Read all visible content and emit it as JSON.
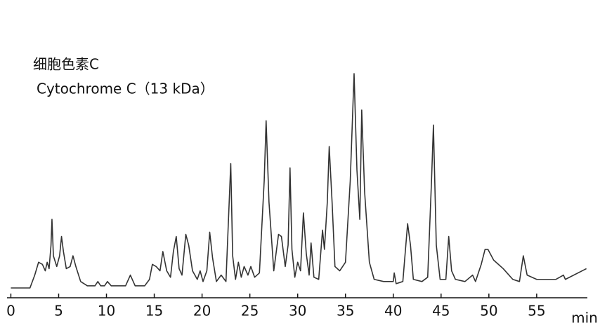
{
  "chart_data": {
    "type": "line",
    "title": "细胞色素C",
    "subtitle": "Cytochrome C（13 kDa）",
    "x_label": "min",
    "color": "#333333",
    "xlim": [
      -0.4,
      60.3
    ],
    "ylim": [
      0,
      100
    ],
    "xticks": [
      0,
      5,
      10,
      15,
      20,
      25,
      30,
      35,
      40,
      45,
      50,
      55
    ],
    "x": [
      0,
      2.0,
      2.5,
      2.9,
      3.3,
      3.6,
      3.8,
      4.0,
      4.2,
      4.3,
      4.45,
      4.8,
      5.1,
      5.3,
      5.5,
      5.8,
      6.2,
      6.5,
      6.8,
      7.3,
      8,
      8.8,
      9.1,
      9.4,
      9.8,
      10.1,
      10.5,
      12,
      12.5,
      13,
      14,
      14.5,
      14.8,
      15.2,
      15.6,
      15.9,
      16.3,
      16.7,
      17.0,
      17.3,
      17.6,
      17.9,
      18.3,
      18.6,
      19,
      19.5,
      19.8,
      20.1,
      20.5,
      20.8,
      21.1,
      21.5,
      22,
      22.5,
      23.0,
      23.2,
      23.5,
      23.8,
      24.1,
      24.4,
      24.8,
      25.1,
      25.5,
      26.0,
      26.5,
      26.7,
      27.0,
      27.5,
      28.0,
      28.3,
      28.7,
      29.0,
      29.2,
      29.4,
      29.7,
      30.0,
      30.3,
      30.6,
      30.9,
      31.2,
      31.4,
      31.7,
      32.2,
      32.6,
      32.8,
      33.1,
      33.3,
      33.6,
      33.9,
      34.4,
      35.0,
      35.5,
      35.9,
      36.2,
      36.5,
      36.7,
      37.0,
      37.5,
      38,
      39,
      40,
      40.1,
      40.3,
      41,
      41.5,
      41.8,
      42.1,
      43,
      43.6,
      44.0,
      44.2,
      44.5,
      44.9,
      45.5,
      45.8,
      46.1,
      46.5,
      47.5,
      48.3,
      48.6,
      49.2,
      49.6,
      49.9,
      50.5,
      51.5,
      52.5,
      53.2,
      53.6,
      54,
      55,
      57,
      57.8,
      58,
      60.2
    ],
    "values": [
      0,
      0,
      6,
      12,
      11,
      8,
      12,
      9,
      20,
      32,
      15,
      10,
      15,
      24,
      17,
      9,
      10,
      15,
      10,
      3,
      1,
      1,
      3,
      1,
      1,
      3,
      1,
      1,
      6,
      1,
      1,
      4,
      11,
      10,
      8,
      17,
      8,
      5,
      17,
      24,
      9,
      6,
      25,
      20,
      8,
      4,
      8,
      3,
      8,
      26,
      14,
      3,
      6,
      3,
      58,
      15,
      4,
      12,
      5,
      10,
      6,
      10,
      5,
      7,
      50,
      78,
      40,
      8,
      25,
      24,
      10,
      20,
      56,
      18,
      5,
      12,
      8,
      35,
      16,
      6,
      21,
      5,
      4,
      27,
      18,
      40,
      66,
      40,
      10,
      8,
      12,
      50,
      100,
      55,
      32,
      83,
      45,
      12,
      4,
      3,
      3,
      7,
      2,
      3,
      30,
      20,
      4,
      3,
      5,
      50,
      76,
      20,
      4,
      4,
      24,
      8,
      4,
      3,
      6,
      3,
      11,
      18,
      18,
      13,
      9,
      4,
      3,
      15,
      6,
      4,
      4,
      6,
      4,
      9
    ]
  }
}
